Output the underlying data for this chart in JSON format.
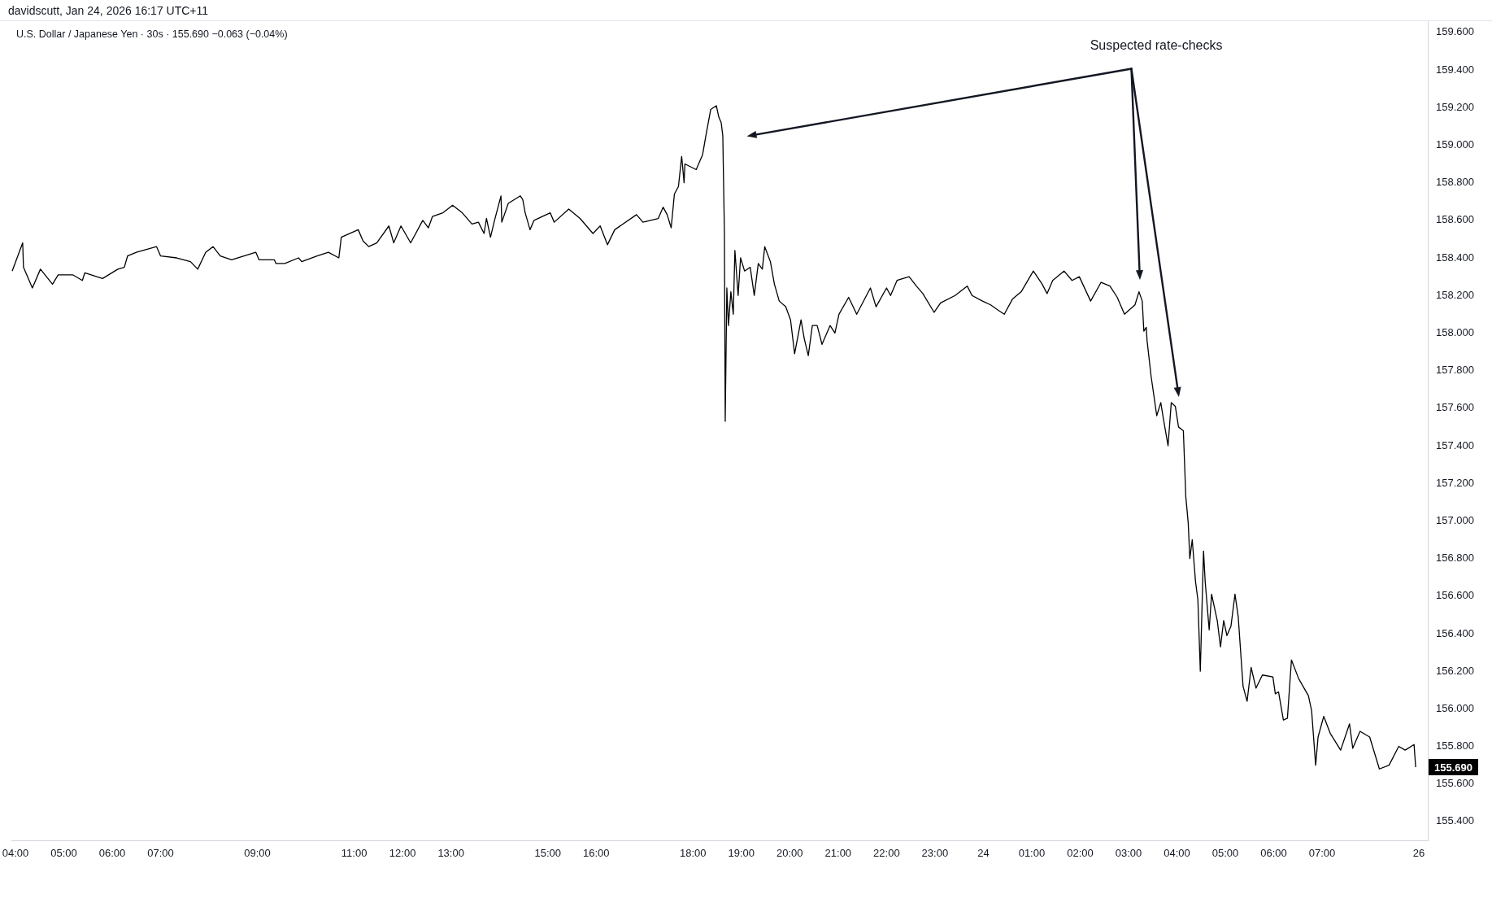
{
  "chart_data": {
    "type": "line",
    "title": "U.S. Dollar / Japanese Yen · 30s · 155.690 −0.063 (−0.04%)",
    "annotations": [
      "davidscutt, Jan 24, 2026 16:17 UTC+11",
      "Suspected rate-checks",
      "155.690"
    ],
    "color": "#000000",
    "xlim": [
      "2026-01-23T03:55",
      "2026-01-24T09:11"
    ],
    "ylim": [
      155.3,
      159.66
    ],
    "xticks": [
      {
        "value": "2026-01-23T04:00",
        "label": "04:00"
      },
      {
        "value": "2026-01-23T05:00",
        "label": "05:00"
      },
      {
        "value": "2026-01-23T06:00",
        "label": "06:00"
      },
      {
        "value": "2026-01-23T07:00",
        "label": "07:00"
      },
      {
        "value": "2026-01-23T09:00",
        "label": "09:00"
      },
      {
        "value": "2026-01-23T11:00",
        "label": "11:00"
      },
      {
        "value": "2026-01-23T12:00",
        "label": "12:00"
      },
      {
        "value": "2026-01-23T13:00",
        "label": "13:00"
      },
      {
        "value": "2026-01-23T15:00",
        "label": "15:00"
      },
      {
        "value": "2026-01-23T16:00",
        "label": "16:00"
      },
      {
        "value": "2026-01-23T18:00",
        "label": "18:00"
      },
      {
        "value": "2026-01-23T19:00",
        "label": "19:00"
      },
      {
        "value": "2026-01-23T20:00",
        "label": "20:00"
      },
      {
        "value": "2026-01-23T21:00",
        "label": "21:00"
      },
      {
        "value": "2026-01-23T22:00",
        "label": "22:00"
      },
      {
        "value": "2026-01-23T23:00",
        "label": "23:00"
      },
      {
        "value": "2026-01-24",
        "label": "24"
      },
      {
        "value": "2026-01-24T01:00",
        "label": "01:00"
      },
      {
        "value": "2026-01-24T02:00",
        "label": "02:00"
      },
      {
        "value": "2026-01-24T03:00",
        "label": "03:00"
      },
      {
        "value": "2026-01-24T04:00",
        "label": "04:00"
      },
      {
        "value": "2026-01-24T05:00",
        "label": "05:00"
      },
      {
        "value": "2026-01-24T06:00",
        "label": "06:00"
      },
      {
        "value": "2026-01-24T07:00",
        "label": "07:00"
      },
      {
        "value": "2026-01-24T09:00",
        "label": "26"
      }
    ],
    "yticks": [
      {
        "value": 155.4,
        "label": "155.400"
      },
      {
        "value": 155.6,
        "label": "155.600"
      },
      {
        "value": 155.8,
        "label": "155.800"
      },
      {
        "value": 156,
        "label": "156.000"
      },
      {
        "value": 156.2,
        "label": "156.200"
      },
      {
        "value": 156.4,
        "label": "156.400"
      },
      {
        "value": 156.6,
        "label": "156.600"
      },
      {
        "value": 156.8,
        "label": "156.800"
      },
      {
        "value": 157,
        "label": "157.000"
      },
      {
        "value": 157.2,
        "label": "157.200"
      },
      {
        "value": 157.4,
        "label": "157.400"
      },
      {
        "value": 157.6,
        "label": "157.600"
      },
      {
        "value": 157.8,
        "label": "157.800"
      },
      {
        "value": 158,
        "label": "158.000"
      },
      {
        "value": 158.2,
        "label": "158.200"
      },
      {
        "value": 158.4,
        "label": "158.400"
      },
      {
        "value": 158.6,
        "label": "158.600"
      },
      {
        "value": 158.8,
        "label": "158.800"
      },
      {
        "value": 159,
        "label": "159.000"
      },
      {
        "value": 159.2,
        "label": "159.200"
      },
      {
        "value": 159.4,
        "label": "159.400"
      },
      {
        "value": 159.6,
        "label": "159.600"
      }
    ],
    "x": [
      "2026-01-23T03:56",
      "2026-01-23T04:09",
      "2026-01-23T04:10",
      "2026-01-23T04:21",
      "2026-01-23T04:31",
      "2026-01-23T04:46",
      "2026-01-23T04:53",
      "2026-01-23T05:11",
      "2026-01-23T05:23",
      "2026-01-23T05:26",
      "2026-01-23T05:48",
      "2026-01-23T06:07",
      "2026-01-23T06:15",
      "2026-01-23T06:19",
      "2026-01-23T06:30",
      "2026-01-23T06:55",
      "2026-01-23T07:00",
      "2026-01-23T07:20",
      "2026-01-23T07:37",
      "2026-01-23T07:46",
      "2026-01-23T07:56",
      "2026-01-23T08:05",
      "2026-01-23T08:14",
      "2026-01-23T08:28",
      "2026-01-23T08:58",
      "2026-01-23T09:02",
      "2026-01-23T09:21",
      "2026-01-23T09:23",
      "2026-01-23T09:34",
      "2026-01-23T09:51",
      "2026-01-23T09:55",
      "2026-01-23T10:14",
      "2026-01-23T10:28",
      "2026-01-23T10:41",
      "2026-01-23T10:44",
      "2026-01-23T11:05",
      "2026-01-23T11:11",
      "2026-01-23T11:18",
      "2026-01-23T11:28",
      "2026-01-23T11:43",
      "2026-01-23T11:49",
      "2026-01-23T11:58",
      "2026-01-23T12:10",
      "2026-01-23T12:25",
      "2026-01-23T12:32",
      "2026-01-23T12:37",
      "2026-01-23T12:50",
      "2026-01-23T13:02",
      "2026-01-23T13:14",
      "2026-01-23T13:26",
      "2026-01-23T13:34",
      "2026-01-23T13:41",
      "2026-01-23T13:44",
      "2026-01-23T13:49",
      "2026-01-23T13:54",
      "2026-01-23T14:02",
      "2026-01-23T14:03",
      "2026-01-23T14:11",
      "2026-01-23T14:26",
      "2026-01-23T14:29",
      "2026-01-23T14:32",
      "2026-01-23T14:38",
      "2026-01-23T14:43",
      "2026-01-23T15:03",
      "2026-01-23T15:08",
      "2026-01-23T15:26",
      "2026-01-23T15:40",
      "2026-01-23T15:56",
      "2026-01-23T16:05",
      "2026-01-23T16:14",
      "2026-01-23T16:23",
      "2026-01-23T16:50",
      "2026-01-23T16:58",
      "2026-01-23T17:17",
      "2026-01-23T17:23",
      "2026-01-23T17:28",
      "2026-01-23T17:33",
      "2026-01-23T17:37",
      "2026-01-23T17:42",
      "2026-01-23T17:46",
      "2026-01-23T17:49",
      "2026-01-23T17:50",
      "2026-01-23T18:04",
      "2026-01-23T18:12",
      "2026-01-23T18:16",
      "2026-01-23T18:22",
      "2026-01-23T18:29",
      "2026-01-23T18:32",
      "2026-01-23T18:35",
      "2026-01-23T18:37",
      "2026-01-23T18:39",
      "2026-01-23T18:40",
      "2026-01-23T18:41",
      "2026-01-23T18:42",
      "2026-01-23T18:44",
      "2026-01-23T18:47",
      "2026-01-23T18:50",
      "2026-01-23T18:52",
      "2026-01-23T18:56",
      "2026-01-23T18:59",
      "2026-01-23T19:04",
      "2026-01-23T19:11",
      "2026-01-23T19:16",
      "2026-01-23T19:21",
      "2026-01-23T19:26",
      "2026-01-23T19:29",
      "2026-01-23T19:36",
      "2026-01-23T19:41",
      "2026-01-23T19:47",
      "2026-01-23T19:55",
      "2026-01-23T20:01",
      "2026-01-23T20:06",
      "2026-01-23T20:14",
      "2026-01-23T20:18",
      "2026-01-23T20:23",
      "2026-01-23T20:28",
      "2026-01-23T20:34",
      "2026-01-23T20:40",
      "2026-01-23T20:50",
      "2026-01-23T20:56",
      "2026-01-23T21:01",
      "2026-01-23T21:13",
      "2026-01-23T21:23",
      "2026-01-23T21:40",
      "2026-01-23T21:47",
      "2026-01-23T22:00",
      "2026-01-23T22:05",
      "2026-01-23T22:13",
      "2026-01-23T22:28",
      "2026-01-23T22:37",
      "2026-01-23T22:45",
      "2026-01-23T22:59",
      "2026-01-23T23:07",
      "2026-01-23T23:25",
      "2026-01-23T23:40",
      "2026-01-23T23:46",
      "2026-01-23T23:59",
      "2026-01-24T00:09",
      "2026-01-24T00:19",
      "2026-01-24T00:26",
      "2026-01-24T00:36",
      "2026-01-24T00:47",
      "2026-01-24T01:02",
      "2026-01-24T01:13",
      "2026-01-24T01:19",
      "2026-01-24T01:26",
      "2026-01-24T01:40",
      "2026-01-24T01:50",
      "2026-01-24T01:59",
      "2026-01-24T02:13",
      "2026-01-24T02:26",
      "2026-01-24T02:37",
      "2026-01-24T02:46",
      "2026-01-24T02:55",
      "2026-01-24T03:08",
      "2026-01-24T03:13",
      "2026-01-24T03:17",
      "2026-01-24T03:19",
      "2026-01-24T03:22",
      "2026-01-24T03:23",
      "2026-01-24T03:28",
      "2026-01-24T03:35",
      "2026-01-24T03:40",
      "2026-01-24T03:43",
      "2026-01-24T03:49",
      "2026-01-24T03:53",
      "2026-01-24T03:58",
      "2026-01-24T04:02",
      "2026-01-24T04:08",
      "2026-01-24T04:11",
      "2026-01-24T04:14",
      "2026-01-24T04:16",
      "2026-01-24T04:19",
      "2026-01-24T04:23",
      "2026-01-24T04:26",
      "2026-01-24T04:29",
      "2026-01-24T04:33",
      "2026-01-24T04:35",
      "2026-01-24T04:40",
      "2026-01-24T04:43",
      "2026-01-24T04:50",
      "2026-01-24T04:54",
      "2026-01-24T04:58",
      "2026-01-24T05:02",
      "2026-01-24T05:07",
      "2026-01-24T05:12",
      "2026-01-24T05:16",
      "2026-01-24T05:22",
      "2026-01-24T05:27",
      "2026-01-24T05:32",
      "2026-01-24T05:38",
      "2026-01-24T05:46",
      "2026-01-24T05:59",
      "2026-01-24T06:02",
      "2026-01-24T06:06",
      "2026-01-24T06:12",
      "2026-01-24T06:17",
      "2026-01-24T06:22",
      "2026-01-24T06:31",
      "2026-01-24T06:43",
      "2026-01-24T06:47",
      "2026-01-24T06:52",
      "2026-01-24T06:55",
      "2026-01-24T07:02",
      "2026-01-24T07:10",
      "2026-01-24T07:23",
      "2026-01-24T07:34",
      "2026-01-24T07:38",
      "2026-01-24T07:47",
      "2026-01-24T07:59",
      "2026-01-24T08:11",
      "2026-01-24T08:23",
      "2026-01-24T08:35",
      "2026-01-24T08:43",
      "2026-01-24T08:54",
      "2026-01-24T08:56"
    ],
    "values": [
      158.33,
      158.48,
      158.35,
      158.24,
      158.34,
      158.26,
      158.31,
      158.31,
      158.28,
      158.32,
      158.29,
      158.34,
      158.35,
      158.41,
      158.43,
      158.46,
      158.41,
      158.4,
      158.38,
      158.34,
      158.43,
      158.46,
      158.41,
      158.39,
      158.43,
      158.39,
      158.39,
      158.37,
      158.37,
      158.4,
      158.38,
      158.41,
      158.43,
      158.4,
      158.51,
      158.55,
      158.49,
      158.46,
      158.48,
      158.57,
      158.48,
      158.57,
      158.48,
      158.6,
      158.56,
      158.62,
      158.64,
      158.68,
      158.64,
      158.58,
      158.59,
      158.53,
      158.61,
      158.51,
      158.6,
      158.73,
      158.59,
      158.69,
      158.73,
      158.71,
      158.64,
      158.55,
      158.6,
      158.64,
      158.59,
      158.66,
      158.61,
      158.53,
      158.57,
      158.47,
      158.55,
      158.63,
      158.59,
      158.61,
      158.67,
      158.63,
      158.56,
      158.74,
      158.78,
      158.94,
      158.8,
      158.9,
      158.87,
      158.95,
      159.05,
      159.19,
      159.21,
      159.15,
      159.12,
      159.05,
      158.53,
      157.53,
      157.88,
      158.24,
      158.04,
      158.22,
      158.1,
      158.44,
      158.2,
      158.4,
      158.33,
      158.35,
      158.2,
      158.37,
      158.34,
      158.46,
      158.38,
      158.26,
      158.17,
      158.14,
      158.07,
      157.89,
      158.07,
      157.97,
      157.88,
      158.04,
      158.04,
      157.94,
      158.04,
      158.0,
      158.1,
      158.19,
      158.1,
      158.24,
      158.14,
      158.24,
      158.2,
      158.28,
      158.3,
      158.25,
      158.21,
      158.11,
      158.16,
      158.2,
      158.25,
      158.2,
      158.17,
      158.15,
      158.12,
      158.1,
      158.18,
      158.22,
      158.33,
      158.26,
      158.21,
      158.28,
      158.33,
      158.28,
      158.3,
      158.17,
      158.27,
      158.25,
      158.19,
      158.1,
      158.15,
      158.22,
      158.17,
      158.01,
      158.03,
      157.96,
      157.77,
      157.56,
      157.63,
      157.55,
      157.4,
      157.63,
      157.61,
      157.5,
      157.48,
      157.13,
      156.99,
      156.8,
      156.9,
      156.68,
      156.58,
      156.2,
      156.84,
      156.68,
      156.42,
      156.61,
      156.47,
      156.33,
      156.47,
      156.39,
      156.44,
      156.61,
      156.49,
      156.12,
      156.04,
      156.22,
      156.11,
      156.18,
      156.17,
      156.08,
      156.09,
      155.94,
      155.95,
      156.26,
      156.16,
      156.07,
      155.99,
      155.7,
      155.85,
      155.96,
      155.87,
      155.78,
      155.92,
      155.79,
      155.88,
      155.85,
      155.68,
      155.7,
      155.8,
      155.78,
      155.81,
      155.69
    ]
  }
}
